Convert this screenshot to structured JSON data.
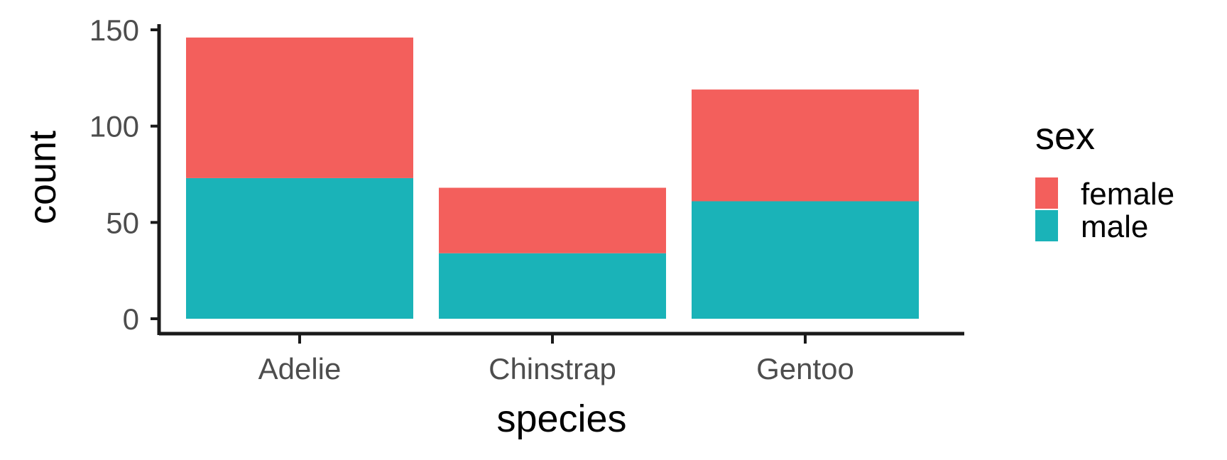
{
  "chart_data": {
    "type": "bar",
    "stacked": true,
    "categories": [
      "Adelie",
      "Chinstrap",
      "Gentoo"
    ],
    "series": [
      {
        "name": "female",
        "values": [
          73,
          34,
          58
        ],
        "color": "#F35F5C"
      },
      {
        "name": "male",
        "values": [
          73,
          34,
          61
        ],
        "color": "#1AB3B8"
      }
    ],
    "xlabel": "species",
    "ylabel": "count",
    "ylim": [
      0,
      150
    ],
    "yticks": [
      0,
      50,
      100,
      150
    ],
    "grid": false,
    "legend": {
      "title": "sex",
      "placement": "right"
    }
  }
}
